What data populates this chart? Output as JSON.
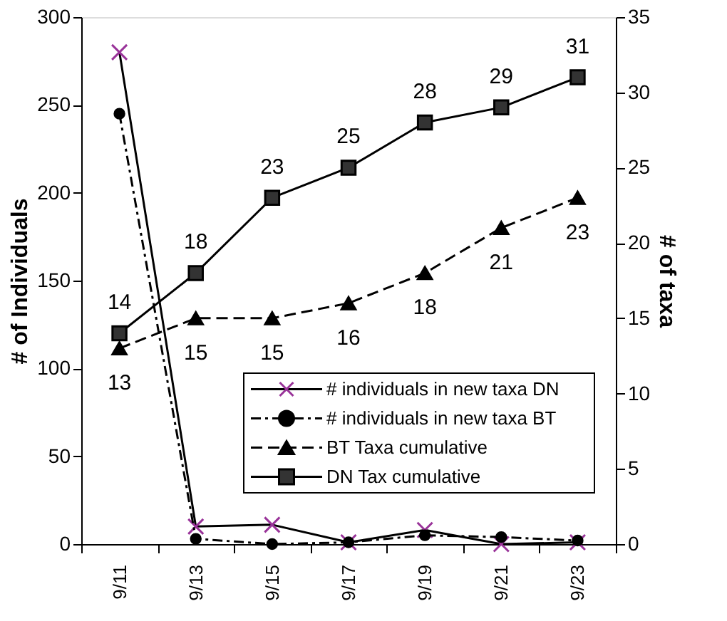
{
  "chart_data": {
    "type": "line",
    "ylabel": "# of Individuals",
    "y2label": "# of taxa",
    "categories": [
      "9/11",
      "9/13",
      "9/15",
      "9/17",
      "9/19",
      "9/21",
      "9/23"
    ],
    "ylim": [
      0,
      300
    ],
    "yticks": [
      0,
      50,
      100,
      150,
      200,
      250,
      300
    ],
    "y2lim": [
      0,
      35
    ],
    "y2ticks": [
      0,
      5,
      10,
      15,
      20,
      25,
      30,
      35
    ],
    "legend": "bottom right",
    "grid": false,
    "series": [
      {
        "name": "# individuals in new taxa DN",
        "color": "#993399",
        "marker": "cross",
        "line_style": "solid",
        "values": [
          280,
          10,
          11,
          1,
          8,
          0,
          1
        ]
      },
      {
        "name": "# individuals in new taxa BT",
        "color": "#000000",
        "marker": "circle",
        "line_style": "dotted",
        "values": [
          245,
          3,
          0,
          1,
          5,
          4,
          2
        ]
      },
      {
        "name": "BT Taxa cumulative",
        "color": "#000000",
        "marker": "triangle",
        "line_style": "dashed",
        "axis": "y2",
        "values": [
          13,
          15,
          15,
          16,
          18,
          21,
          23
        ],
        "value_labels": [
          "13",
          "15",
          "15",
          "16",
          "18",
          "21",
          "23"
        ]
      },
      {
        "name": "DN Tax cumulative",
        "color": "#333333",
        "marker": "square",
        "line_style": "solid",
        "axis": "y2",
        "values": [
          14,
          18,
          23,
          25,
          28,
          29,
          31
        ],
        "value_labels": [
          "14",
          "18",
          "23",
          "25",
          "28",
          "29",
          "31"
        ]
      }
    ]
  }
}
